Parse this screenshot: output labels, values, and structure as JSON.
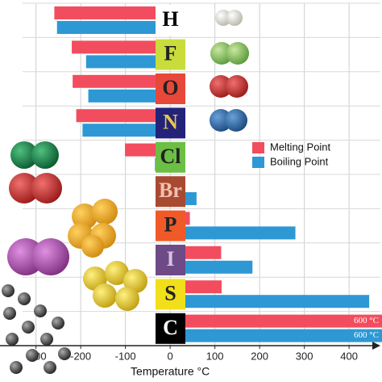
{
  "chart_data": {
    "type": "bar",
    "orientation": "horizontal",
    "xlabel": "Temperature °C",
    "categories": [
      "H",
      "F",
      "O",
      "N",
      "Cl",
      "Br",
      "P",
      "I",
      "S",
      "C"
    ],
    "category_colors": [
      "#ffffff",
      "#c9dc3c",
      "#e8483a",
      "#23237a",
      "#6cbf45",
      "#a84a32",
      "#f05a28",
      "#6e4a86",
      "#f1df1c",
      "#000000"
    ],
    "category_text_colors": [
      "#000000",
      "#222222",
      "#222222",
      "#e8c84a",
      "#222222",
      "#f2c0b0",
      "#222222",
      "#d6c4e6",
      "#222222",
      "#ffffff"
    ],
    "series": [
      {
        "name": "Melting Point",
        "color": "#f24d5e",
        "values": [
          -259,
          -220,
          -218,
          -210,
          -101,
          -7,
          44,
          114,
          115,
          600
        ],
        "value_labels": [
          null,
          null,
          null,
          null,
          null,
          null,
          null,
          null,
          null,
          "600 °C"
        ]
      },
      {
        "name": "Boiling Point",
        "color": "#2e98d4",
        "values": [
          -253,
          -188,
          -183,
          -196,
          -34,
          59,
          280,
          184,
          445,
          600
        ],
        "value_labels": [
          null,
          null,
          null,
          null,
          null,
          null,
          null,
          null,
          null,
          "600 °C"
        ]
      }
    ],
    "xlim": [
      -330,
      470
    ],
    "xticks": [
      -300,
      -200,
      -100,
      0,
      100,
      200,
      300,
      400
    ],
    "grid": true,
    "legend": "right"
  }
}
